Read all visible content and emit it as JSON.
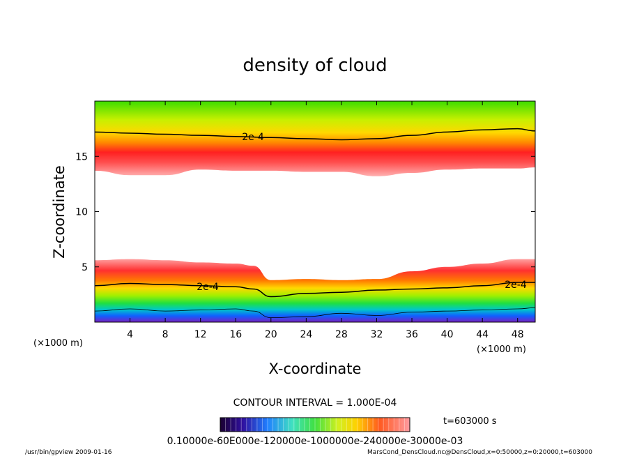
{
  "chart_data": {
    "type": "heatmap",
    "title": "density of cloud",
    "xlabel": "X-coordinate",
    "ylabel": "Z-coordinate",
    "x_unit": "(×1000 m)",
    "x_unit_right": "(×1000 m)",
    "xlim": [
      0,
      50
    ],
    "ylim": [
      0,
      20
    ],
    "x_ticks": [
      "4",
      "8",
      "12",
      "16",
      "20",
      "24",
      "28",
      "32",
      "36",
      "40",
      "44",
      "48"
    ],
    "y_ticks": [
      "5",
      "10",
      "15"
    ],
    "contour_labels": [
      "2e-4",
      "2e-4",
      "2e-4"
    ],
    "contour_interval_text": "CONTOUR INTERVAL = 1.000E-04",
    "time_label": "t=603000  s",
    "colorbar_labels_text": "0.10000e-60E000e-120000e-1000000e-240000e-30000e-03",
    "footer_left": "/usr/bin/gpview   2009-01-16",
    "footer_right": "MarsCond_DensCloud.nc@DensCloud,x=0:50000,z=0:20000,t=603000",
    "upper_layer": {
      "x": [
        0,
        4,
        8,
        12,
        16,
        20,
        24,
        28,
        32,
        36,
        40,
        44,
        48,
        50
      ],
      "top_contour_z": [
        17.2,
        17.1,
        17.0,
        16.9,
        16.8,
        16.7,
        16.6,
        16.5,
        16.6,
        16.9,
        17.2,
        17.4,
        17.5,
        17.3
      ],
      "bottom_z": [
        13.7,
        13.3,
        13.3,
        13.8,
        13.7,
        13.7,
        13.6,
        13.6,
        13.2,
        13.5,
        13.8,
        13.9,
        13.9,
        14.0
      ]
    },
    "lower_layer": {
      "x": [
        0,
        4,
        8,
        12,
        16,
        18,
        20,
        24,
        28,
        32,
        36,
        40,
        44,
        48,
        50
      ],
      "top_z": [
        5.6,
        5.7,
        5.6,
        5.4,
        5.3,
        5.1,
        3.8,
        3.9,
        3.8,
        3.9,
        4.6,
        5.0,
        5.3,
        5.7,
        5.7
      ],
      "contour_z": [
        3.3,
        3.5,
        3.4,
        3.3,
        3.2,
        3.0,
        2.3,
        2.6,
        2.7,
        2.9,
        3.0,
        3.1,
        3.3,
        3.6,
        3.6
      ],
      "bottom_z": [
        1.0,
        1.2,
        1.0,
        1.1,
        1.2,
        1.0,
        0.4,
        0.5,
        0.8,
        0.6,
        0.9,
        1.0,
        1.1,
        1.2,
        1.3
      ]
    },
    "colors": {
      "green": "#22dd00",
      "yellow": "#ffe000",
      "orange": "#ff7a00",
      "red": "#ff1010",
      "pink": "#ff9a9a",
      "cyan": "#00c8c8",
      "blue": "#1060ff",
      "purple": "#7a20c0"
    }
  }
}
